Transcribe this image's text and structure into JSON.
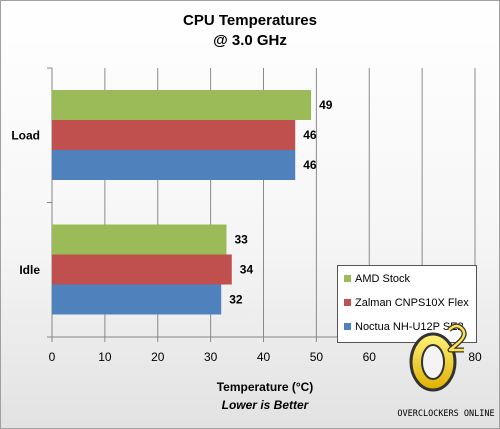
{
  "chart_data": {
    "type": "bar",
    "orientation": "horizontal",
    "title": "CPU Temperatures",
    "subtitle": "@ 3.0 GHz",
    "categories": [
      "Load",
      "Idle"
    ],
    "series": [
      {
        "name": "AMD Stock",
        "color": "#9bbb59",
        "values": [
          49,
          33
        ]
      },
      {
        "name": "Zalman CNPS10X Flex",
        "color": "#c0504d",
        "values": [
          46,
          34
        ]
      },
      {
        "name": "Noctua NH-U12P SE2",
        "color": "#4f81bd",
        "values": [
          46,
          32
        ]
      }
    ],
    "xlabel": "Temperature (°C)",
    "xlabel_note": "Lower is Better",
    "xlim": [
      0,
      80
    ],
    "xticks": [
      "0",
      "10",
      "20",
      "30",
      "40",
      "50",
      "60",
      "70",
      "80"
    ],
    "grid": true,
    "legend_position": "bottom-right"
  },
  "logo": {
    "text": "OVERCLOCKERS ONLINE",
    "mark": "O²"
  }
}
